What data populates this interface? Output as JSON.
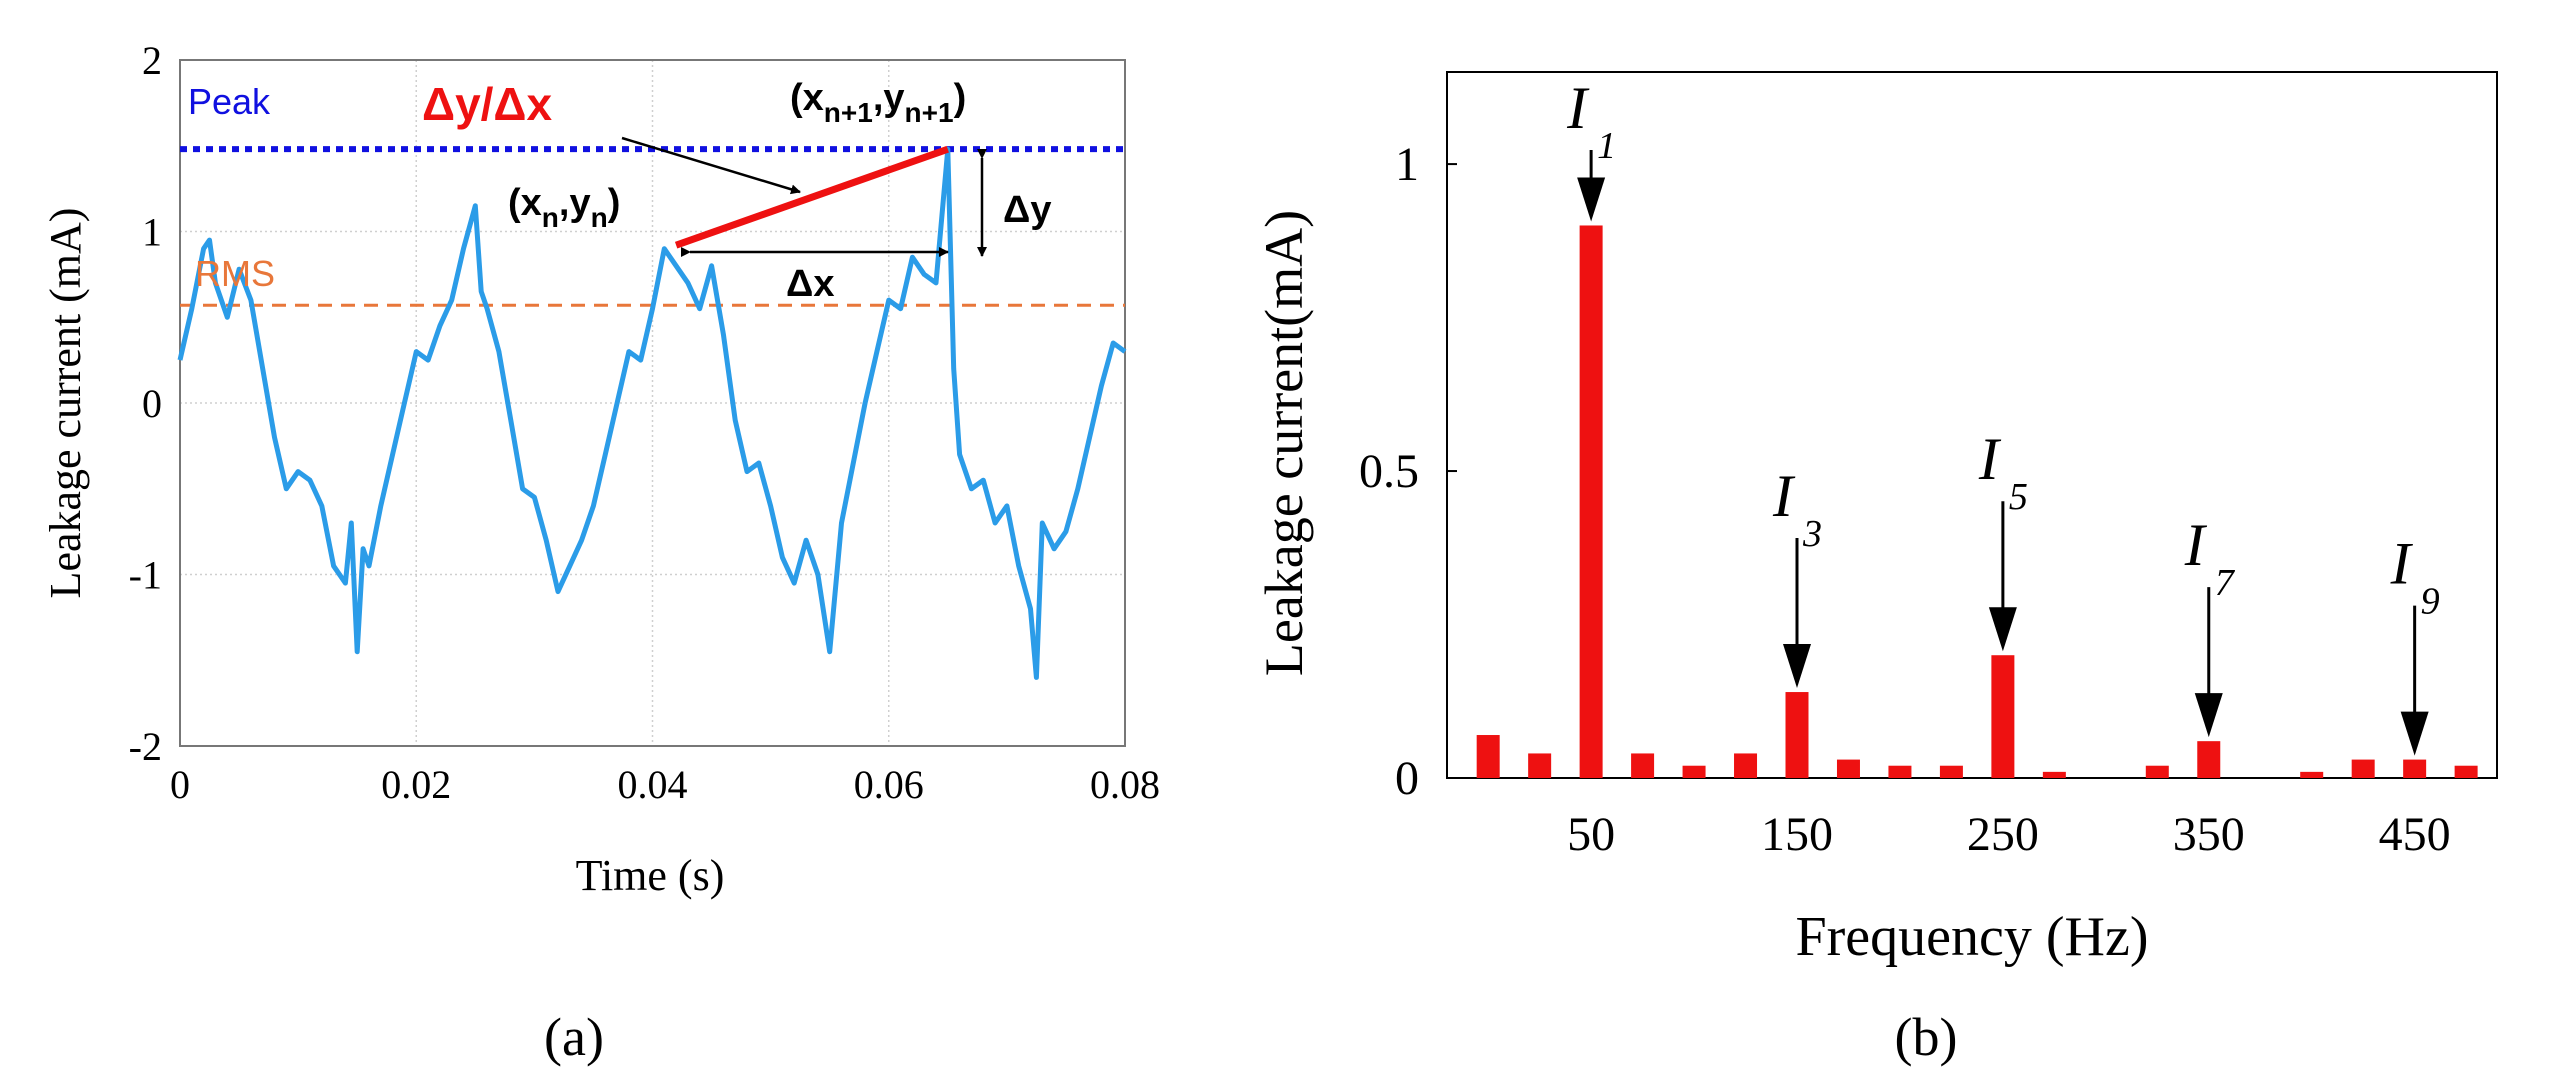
{
  "chart_data": [
    {
      "type": "line",
      "panel_label": "(a)",
      "xlabel": "Time (s)",
      "ylabel": "Leakage current (mA)",
      "xlim": [
        0,
        0.08
      ],
      "ylim": [
        -2,
        2
      ],
      "xticks": [
        0,
        0.02,
        0.04,
        0.06,
        0.08
      ],
      "xtick_labels": [
        "0",
        "0.02",
        "0.04",
        "0.06",
        "0.08"
      ],
      "yticks": [
        -2,
        -1,
        0,
        1,
        2
      ],
      "ytick_labels": [
        "-2",
        "-1",
        "0",
        "1",
        "2"
      ],
      "grid": true,
      "series": [
        {
          "name": "Leakage current",
          "color": "#2b9ce8",
          "x": [
            0,
            0.001,
            0.002,
            0.0025,
            0.003,
            0.004,
            0.005,
            0.006,
            0.007,
            0.008,
            0.009,
            0.01,
            0.011,
            0.012,
            0.013,
            0.014,
            0.0145,
            0.015,
            0.0155,
            0.016,
            0.017,
            0.018,
            0.019,
            0.02,
            0.021,
            0.022,
            0.023,
            0.024,
            0.025,
            0.0255,
            0.026,
            0.027,
            0.028,
            0.029,
            0.03,
            0.031,
            0.032,
            0.033,
            0.034,
            0.035,
            0.036,
            0.037,
            0.038,
            0.039,
            0.04,
            0.041,
            0.042,
            0.043,
            0.044,
            0.045,
            0.046,
            0.047,
            0.048,
            0.049,
            0.05,
            0.051,
            0.052,
            0.053,
            0.054,
            0.055,
            0.056,
            0.057,
            0.058,
            0.059,
            0.06,
            0.061,
            0.062,
            0.063,
            0.064,
            0.065,
            0.0655,
            0.066,
            0.067,
            0.068,
            0.069,
            0.07,
            0.071,
            0.072,
            0.0725,
            0.073,
            0.074,
            0.075,
            0.076,
            0.077,
            0.078,
            0.079,
            0.08
          ],
          "values": [
            0.25,
            0.55,
            0.9,
            0.95,
            0.7,
            0.5,
            0.78,
            0.6,
            0.2,
            -0.2,
            -0.5,
            -0.4,
            -0.45,
            -0.6,
            -0.95,
            -1.05,
            -0.7,
            -1.45,
            -0.85,
            -0.95,
            -0.6,
            -0.3,
            0.0,
            0.3,
            0.25,
            0.45,
            0.6,
            0.9,
            1.15,
            0.65,
            0.55,
            0.3,
            -0.1,
            -0.5,
            -0.55,
            -0.8,
            -1.1,
            -0.95,
            -0.8,
            -0.6,
            -0.3,
            0.0,
            0.3,
            0.25,
            0.55,
            0.9,
            0.8,
            0.7,
            0.55,
            0.8,
            0.4,
            -0.1,
            -0.4,
            -0.35,
            -0.6,
            -0.9,
            -1.05,
            -0.8,
            -1.0,
            -1.45,
            -0.7,
            -0.35,
            0.0,
            0.3,
            0.6,
            0.55,
            0.85,
            0.75,
            0.7,
            1.48,
            0.2,
            -0.3,
            -0.5,
            -0.45,
            -0.7,
            -0.6,
            -0.95,
            -1.2,
            -1.6,
            -0.7,
            -0.85,
            -0.75,
            -0.5,
            -0.2,
            0.1,
            0.35,
            0.3
          ]
        }
      ],
      "reference_lines": [
        {
          "label": "Peak",
          "y": 1.48,
          "color": "#1010e0",
          "style": "dotted"
        },
        {
          "label": "RMS",
          "y": 0.57,
          "color": "#e8773a",
          "style": "dashed"
        }
      ],
      "slope_line": {
        "x1": 0.042,
        "y1": 0.92,
        "x2": 0.065,
        "y2": 1.48,
        "color": "#ee1111"
      },
      "annotations": {
        "slope_label": "Δy/Δx",
        "point_n_base": "(x",
        "point_n_sub1": "n",
        "point_n_mid": ",y",
        "point_n_sub2": "n",
        "point_n_end": ")",
        "point_n1_base": "(x",
        "point_n1_sub1": "n+1",
        "point_n1_mid": ",y",
        "point_n1_sub2": "n+1",
        "point_n1_end": ")",
        "dx_label": "Δx",
        "dy_label": "Δy"
      }
    },
    {
      "type": "bar",
      "panel_label": "(b)",
      "xlabel": "Frequency (Hz)",
      "ylabel": "Leakage current(mA)",
      "xlim": [
        -20,
        490
      ],
      "ylim": [
        0,
        1.15
      ],
      "xticks": [
        50,
        150,
        250,
        350,
        450
      ],
      "xtick_labels": [
        "50",
        "150",
        "250",
        "350",
        "450"
      ],
      "yticks": [
        0,
        0.5,
        1
      ],
      "ytick_labels": [
        "0",
        "0.5",
        "1"
      ],
      "grid": false,
      "color": "#ee1111",
      "x": [
        0,
        25,
        50,
        75,
        100,
        125,
        150,
        175,
        200,
        225,
        250,
        275,
        300,
        325,
        350,
        375,
        400,
        425,
        450,
        475
      ],
      "values": [
        0.07,
        0.04,
        0.9,
        0.04,
        0.02,
        0.04,
        0.14,
        0.03,
        0.02,
        0.02,
        0.2,
        0.01,
        0.0,
        0.02,
        0.06,
        0.0,
        0.01,
        0.03,
        0.03,
        0.02
      ],
      "harmonic_labels": [
        {
          "letter": "I",
          "sub": "1",
          "x": 50
        },
        {
          "letter": "I",
          "sub": "3",
          "x": 150
        },
        {
          "letter": "I",
          "sub": "5",
          "x": 250
        },
        {
          "letter": "I",
          "sub": "7",
          "x": 350
        },
        {
          "letter": "I",
          "sub": "9",
          "x": 450
        }
      ]
    }
  ]
}
